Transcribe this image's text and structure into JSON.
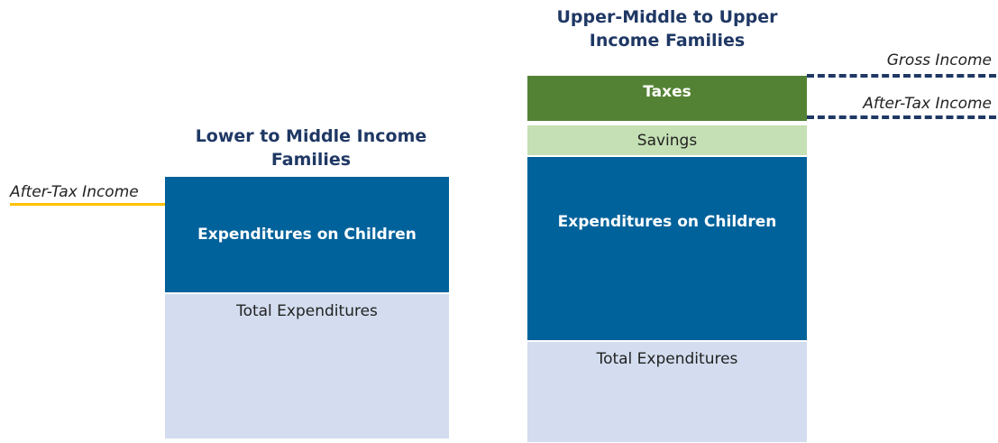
{
  "left": {
    "title": "Lower to Middle Income Families",
    "line_label": "After-Tax Income",
    "blocks": [
      "Expenditures on Children",
      "Total Expenditures"
    ]
  },
  "right": {
    "title": "Upper-Middle to Upper Income Families",
    "blocks": [
      "Taxes",
      "Savings",
      "Expenditures on Children",
      "Total Expenditures"
    ],
    "line_labels": [
      "Gross Income",
      "After-Tax Income"
    ]
  }
}
